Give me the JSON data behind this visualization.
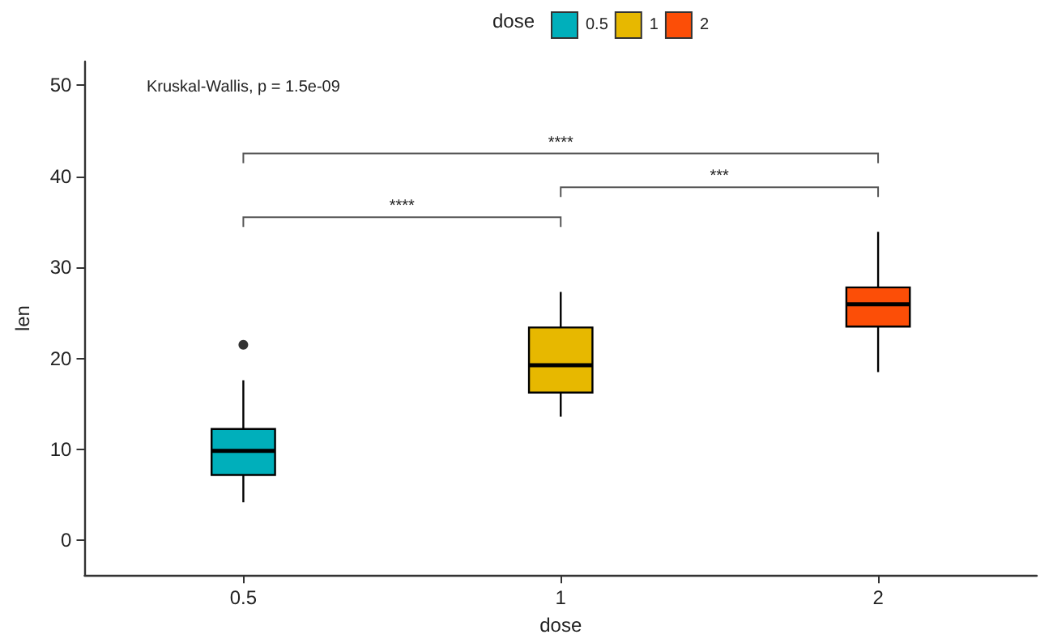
{
  "chart_data": {
    "type": "box",
    "xlabel": "dose",
    "ylabel": "len",
    "legend_title": "dose",
    "legend": "top",
    "categories": [
      "0.5",
      "1",
      "2"
    ],
    "series": [
      {
        "name": "0.5",
        "color": "#00afbb",
        "boxes": [
          {
            "low": 4.2,
            "q1": 7.2,
            "median": 9.85,
            "q3": 12.25,
            "high": 17.6,
            "outliers": [
              21.5
            ]
          },
          null,
          null
        ]
      },
      {
        "name": "1",
        "color": "#e7b800",
        "boxes": [
          null,
          {
            "low": 13.6,
            "q1": 16.25,
            "median": 19.25,
            "q3": 23.4,
            "high": 27.3
          },
          null
        ]
      },
      {
        "name": "2",
        "color": "#fc4e07",
        "boxes": [
          null,
          null,
          {
            "low": 18.5,
            "q1": 23.5,
            "median": 25.95,
            "q3": 27.8,
            "high": 33.9
          }
        ]
      }
    ],
    "ylim": [
      -3.8,
      52.6
    ],
    "yticks": [
      0,
      10,
      20,
      30,
      40,
      50
    ],
    "grid": false,
    "annotations": [
      "Kruskal-Wallis, p = 1.5e-09",
      "****",
      "***",
      "****"
    ]
  }
}
